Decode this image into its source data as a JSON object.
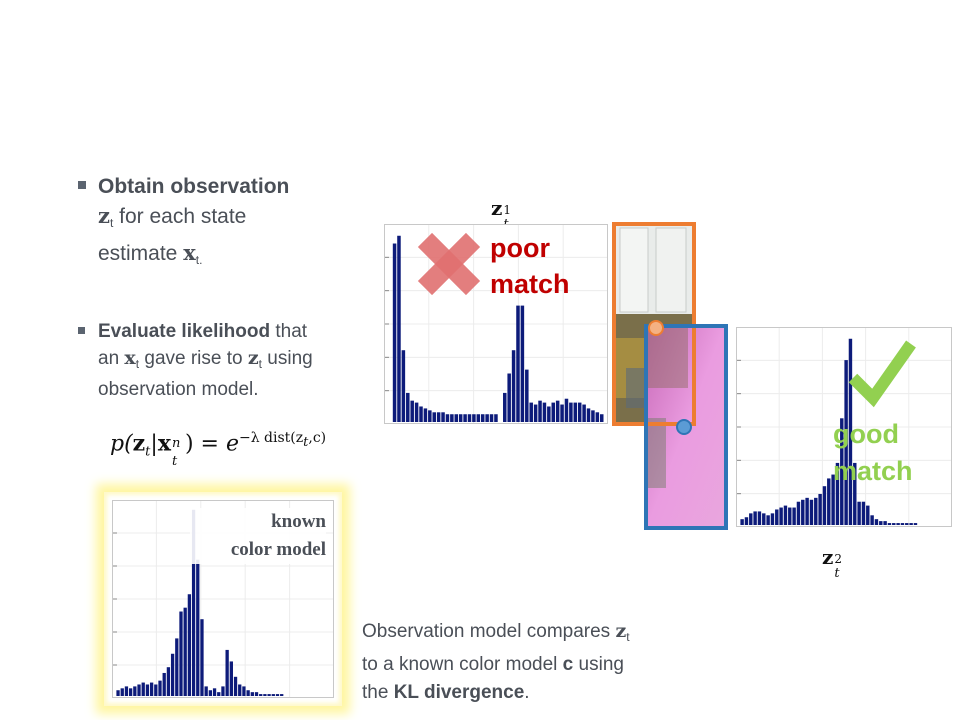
{
  "bullets": [
    {
      "bold": "Obtain observation",
      "line2_sym": "z",
      "line2_sub": "t",
      "line2_rest": " for each state",
      "line3_rest": "estimate ",
      "line3_sym": "x",
      "line3_sub": "t."
    },
    {
      "bold": "Evaluate likelihood",
      "after_bold": " that",
      "l2_pre": "an ",
      "l2_sym1": "x",
      "l2_sub1": "t",
      "l2_mid": " gave rise to ",
      "l2_sym2": "z",
      "l2_sub2": "t",
      "l2_post": " using",
      "l3": "observation model."
    }
  ],
  "formula": {
    "lhs": "p(",
    "z": "z",
    "t": "t",
    "bar": "|",
    "x": "x",
    "n": "n",
    "close": ") = ",
    "e": "e",
    "exponent": "−λ dist(z",
    "exp_t": "t",
    "exp_tail": ",c)"
  },
  "labels": {
    "z1_base": "z",
    "z1_sup": "1",
    "z1_sub": "t",
    "z2_base": "z",
    "z2_sup": "2",
    "z2_sub": "t",
    "poor_line1": "poor",
    "poor_line2": "match",
    "good_line1": "good",
    "good_line2": "match",
    "known_line1": "known",
    "known_line2": "color model"
  },
  "caption": {
    "p1": "Observation model compares ",
    "sym_z": "z",
    "sub_t": "t",
    "p2": "to a known color model ",
    "sym_c": "c",
    "p3": " using",
    "p4": "the ",
    "bold": "KL divergence",
    "p5": "."
  },
  "colors": {
    "bars": "#0d1b7a",
    "poor": "#c00000",
    "good": "#92d050",
    "cross": "#e07070",
    "orange_box": "#ed7d31",
    "blue_box": "#2e75b6"
  },
  "icons": {
    "cross": "x-mark-icon",
    "check": "checkmark-icon"
  },
  "histograms": {
    "z1": [
      0.0,
      0.92,
      0.96,
      0.37,
      0.15,
      0.11,
      0.1,
      0.08,
      0.07,
      0.06,
      0.05,
      0.05,
      0.05,
      0.04,
      0.04,
      0.04,
      0.04,
      0.04,
      0.04,
      0.04,
      0.04,
      0.04,
      0.04,
      0.04,
      0.04,
      0.0,
      0.15,
      0.25,
      0.37,
      0.6,
      0.6,
      0.27,
      0.1,
      0.09,
      0.11,
      0.1,
      0.08,
      0.1,
      0.11,
      0.09,
      0.12,
      0.1,
      0.1,
      0.1,
      0.09,
      0.07,
      0.06,
      0.05,
      0.04
    ],
    "z2": [
      0.03,
      0.04,
      0.06,
      0.07,
      0.07,
      0.06,
      0.05,
      0.06,
      0.08,
      0.09,
      0.1,
      0.09,
      0.09,
      0.12,
      0.13,
      0.14,
      0.13,
      0.14,
      0.16,
      0.2,
      0.24,
      0.26,
      0.32,
      0.55,
      0.85,
      0.96,
      0.32,
      0.12,
      0.12,
      0.1,
      0.05,
      0.03,
      0.02,
      0.02,
      0.01,
      0.01,
      0.01,
      0.01,
      0.01,
      0.01,
      0.01,
      0.0,
      0.0,
      0.0,
      0.0,
      0.0,
      0.0,
      0.0
    ],
    "known": [
      0.03,
      0.04,
      0.05,
      0.04,
      0.05,
      0.06,
      0.07,
      0.06,
      0.07,
      0.06,
      0.08,
      0.12,
      0.15,
      0.22,
      0.3,
      0.44,
      0.46,
      0.53,
      0.97,
      0.71,
      0.4,
      0.05,
      0.03,
      0.04,
      0.02,
      0.05,
      0.24,
      0.18,
      0.1,
      0.06,
      0.05,
      0.03,
      0.02,
      0.02,
      0.01,
      0.01,
      0.01,
      0.01,
      0.01,
      0.01,
      0.0,
      0.0,
      0.0,
      0.0,
      0.0,
      0.0,
      0.0,
      0.0,
      0.0,
      0.0,
      0.0
    ]
  }
}
